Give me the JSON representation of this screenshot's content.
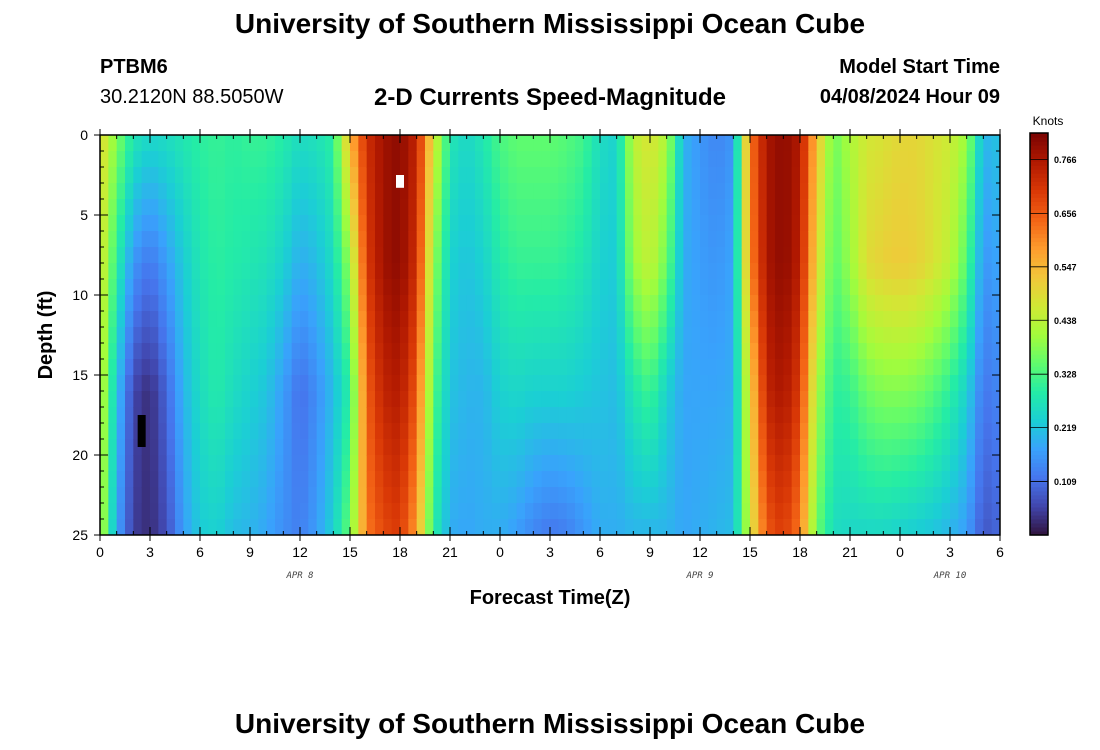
{
  "header": {
    "title": "University of Southern Mississippi Ocean Cube",
    "station_id": "PTBM6",
    "coordinates": "30.2120N  88.5050W",
    "subtitle": "2-D Currents Speed-Magnitude",
    "model_start_label": "Model Start Time",
    "model_start_value": "04/08/2024 Hour 09"
  },
  "footer": {
    "title": "University of Southern Mississippi Ocean Cube"
  },
  "chart_data": {
    "type": "heatmap",
    "title": "2-D Currents Speed-Magnitude",
    "xlabel": "Forecast Time(Z)",
    "ylabel": "Depth (ft)",
    "x_range_hours": [
      0,
      54
    ],
    "ylim": [
      0,
      25
    ],
    "y_inverted": true,
    "x_tick_hours": [
      0,
      3,
      6,
      9,
      12,
      15,
      18,
      21,
      24,
      27,
      30,
      33,
      36,
      39,
      42,
      45,
      48,
      51,
      54
    ],
    "x_tick_labels": [
      "0",
      "3",
      "6",
      "9",
      "12",
      "15",
      "18",
      "21",
      "0",
      "3",
      "6",
      "9",
      "12",
      "15",
      "18",
      "21",
      "0",
      "3",
      "6"
    ],
    "y_ticks": [
      0,
      5,
      10,
      15,
      20,
      25
    ],
    "y_tick_labels": [
      "0",
      "5",
      "10",
      "15",
      "20",
      "25"
    ],
    "date_labels": [
      {
        "hour": 12,
        "label": "APR 8"
      },
      {
        "hour": 36,
        "label": "APR 9"
      },
      {
        "hour": 51,
        "label": "APR 10"
      }
    ],
    "colorbar": {
      "title": "Knots",
      "min": 0.0,
      "max": 0.82,
      "tick_values": [
        0.766,
        0.656,
        0.547,
        0.438,
        0.328,
        0.219,
        0.109
      ],
      "tick_labels": [
        "0.766",
        "0.656",
        "0.547",
        "0.438",
        "0.328",
        "0.219",
        "0.109"
      ],
      "colormap": [
        "#30123b",
        "#4145ab",
        "#4675ed",
        "#39a2fc",
        "#1bcfd4",
        "#24eca6",
        "#61fc6c",
        "#a4fc3b",
        "#d1e834",
        "#f3c63a",
        "#fe9b2d",
        "#f36315",
        "#d93806",
        "#b11901",
        "#7a0402"
      ]
    },
    "columns": [
      {
        "hour": 0,
        "depth_profile": [
          0.5,
          0.48,
          0.46,
          0.45
        ]
      },
      {
        "hour": 1,
        "depth_profile": [
          0.38,
          0.3,
          0.22,
          0.18
        ]
      },
      {
        "hour": 2,
        "depth_profile": [
          0.28,
          0.16,
          0.06,
          0.05
        ]
      },
      {
        "hour": 3,
        "depth_profile": [
          0.25,
          0.12,
          0.03,
          0.03
        ]
      },
      {
        "hour": 4,
        "depth_profile": [
          0.26,
          0.17,
          0.1,
          0.07
        ]
      },
      {
        "hour": 5,
        "depth_profile": [
          0.28,
          0.23,
          0.2,
          0.17
        ]
      },
      {
        "hour": 6,
        "depth_profile": [
          0.3,
          0.28,
          0.26,
          0.23
        ]
      },
      {
        "hour": 7,
        "depth_profile": [
          0.31,
          0.3,
          0.29,
          0.24
        ]
      },
      {
        "hour": 8,
        "depth_profile": [
          0.3,
          0.29,
          0.26,
          0.21
        ]
      },
      {
        "hour": 9,
        "depth_profile": [
          0.31,
          0.28,
          0.24,
          0.2
        ]
      },
      {
        "hour": 10,
        "depth_profile": [
          0.31,
          0.27,
          0.22,
          0.18
        ]
      },
      {
        "hour": 11,
        "depth_profile": [
          0.29,
          0.24,
          0.17,
          0.15
        ]
      },
      {
        "hour": 12,
        "depth_profile": [
          0.26,
          0.19,
          0.11,
          0.13
        ]
      },
      {
        "hour": 13,
        "depth_profile": [
          0.27,
          0.21,
          0.15,
          0.17
        ]
      },
      {
        "hour": 14,
        "depth_profile": [
          0.3,
          0.26,
          0.21,
          0.24
        ]
      },
      {
        "hour": 15,
        "depth_profile": [
          0.55,
          0.4,
          0.3,
          0.36
        ]
      },
      {
        "hour": 16,
        "depth_profile": [
          0.72,
          0.7,
          0.65,
          0.62
        ]
      },
      {
        "hour": 17,
        "depth_profile": [
          0.78,
          0.78,
          0.74,
          0.68
        ]
      },
      {
        "hour": 18,
        "depth_profile": [
          0.8,
          0.8,
          0.76,
          0.7
        ]
      },
      {
        "hour": 19,
        "depth_profile": [
          0.74,
          0.72,
          0.66,
          0.58
        ]
      },
      {
        "hour": 20,
        "depth_profile": [
          0.48,
          0.4,
          0.34,
          0.3
        ]
      },
      {
        "hour": 21,
        "depth_profile": [
          0.28,
          0.24,
          0.22,
          0.19
        ]
      },
      {
        "hour": 22,
        "depth_profile": [
          0.25,
          0.22,
          0.2,
          0.18
        ]
      },
      {
        "hour": 23,
        "depth_profile": [
          0.28,
          0.24,
          0.2,
          0.19
        ]
      },
      {
        "hour": 24,
        "depth_profile": [
          0.33,
          0.29,
          0.24,
          0.19
        ]
      },
      {
        "hour": 25,
        "depth_profile": [
          0.35,
          0.31,
          0.25,
          0.17
        ]
      },
      {
        "hour": 26,
        "depth_profile": [
          0.35,
          0.31,
          0.24,
          0.14
        ]
      },
      {
        "hour": 27,
        "depth_profile": [
          0.35,
          0.31,
          0.24,
          0.12
        ]
      },
      {
        "hour": 28,
        "depth_profile": [
          0.34,
          0.3,
          0.24,
          0.13
        ]
      },
      {
        "hour": 29,
        "depth_profile": [
          0.32,
          0.28,
          0.23,
          0.16
        ]
      },
      {
        "hour": 30,
        "depth_profile": [
          0.26,
          0.24,
          0.22,
          0.19
        ]
      },
      {
        "hour": 31,
        "depth_profile": [
          0.24,
          0.23,
          0.21,
          0.19
        ]
      },
      {
        "hour": 32,
        "depth_profile": [
          0.44,
          0.4,
          0.28,
          0.2
        ]
      },
      {
        "hour": 33,
        "depth_profile": [
          0.48,
          0.45,
          0.32,
          0.2
        ]
      },
      {
        "hour": 34,
        "depth_profile": [
          0.42,
          0.36,
          0.24,
          0.2
        ]
      },
      {
        "hour": 35,
        "depth_profile": [
          0.2,
          0.19,
          0.18,
          0.18
        ]
      },
      {
        "hour": 36,
        "depth_profile": [
          0.16,
          0.17,
          0.18,
          0.19
        ]
      },
      {
        "hour": 37,
        "depth_profile": [
          0.14,
          0.16,
          0.18,
          0.2
        ]
      },
      {
        "hour": 38,
        "depth_profile": [
          0.16,
          0.18,
          0.19,
          0.21
        ]
      },
      {
        "hour": 39,
        "depth_profile": [
          0.62,
          0.6,
          0.5,
          0.46
        ]
      },
      {
        "hour": 40,
        "depth_profile": [
          0.77,
          0.77,
          0.74,
          0.66
        ]
      },
      {
        "hour": 41,
        "depth_profile": [
          0.8,
          0.8,
          0.77,
          0.7
        ]
      },
      {
        "hour": 42,
        "depth_profile": [
          0.76,
          0.75,
          0.7,
          0.62
        ]
      },
      {
        "hour": 43,
        "depth_profile": [
          0.54,
          0.5,
          0.42,
          0.36
        ]
      },
      {
        "hour": 44,
        "depth_profile": [
          0.36,
          0.34,
          0.3,
          0.26
        ]
      },
      {
        "hour": 45,
        "depth_profile": [
          0.42,
          0.4,
          0.31,
          0.25
        ]
      },
      {
        "hour": 46,
        "depth_profile": [
          0.47,
          0.49,
          0.36,
          0.25
        ]
      },
      {
        "hour": 47,
        "depth_profile": [
          0.48,
          0.51,
          0.38,
          0.25
        ]
      },
      {
        "hour": 48,
        "depth_profile": [
          0.5,
          0.52,
          0.38,
          0.24
        ]
      },
      {
        "hour": 49,
        "depth_profile": [
          0.5,
          0.51,
          0.37,
          0.23
        ]
      },
      {
        "hour": 50,
        "depth_profile": [
          0.48,
          0.48,
          0.34,
          0.22
        ]
      },
      {
        "hour": 51,
        "depth_profile": [
          0.46,
          0.44,
          0.3,
          0.2
        ]
      },
      {
        "hour": 52,
        "depth_profile": [
          0.4,
          0.34,
          0.24,
          0.17
        ]
      },
      {
        "hour": 53,
        "depth_profile": [
          0.2,
          0.16,
          0.12,
          0.08
        ]
      },
      {
        "hour": 54,
        "depth_profile": [
          0.22,
          0.18,
          0.14,
          0.1
        ]
      }
    ],
    "profile_depths_ft": [
      0,
      8,
      16,
      25
    ],
    "markers": [
      {
        "hour": 2.5,
        "depth_from": 17.5,
        "depth_to": 19.5,
        "color": "#000000"
      },
      {
        "hour": 18.0,
        "depth_from": 2.5,
        "depth_to": 3.3,
        "color": "#ffffff"
      }
    ]
  }
}
